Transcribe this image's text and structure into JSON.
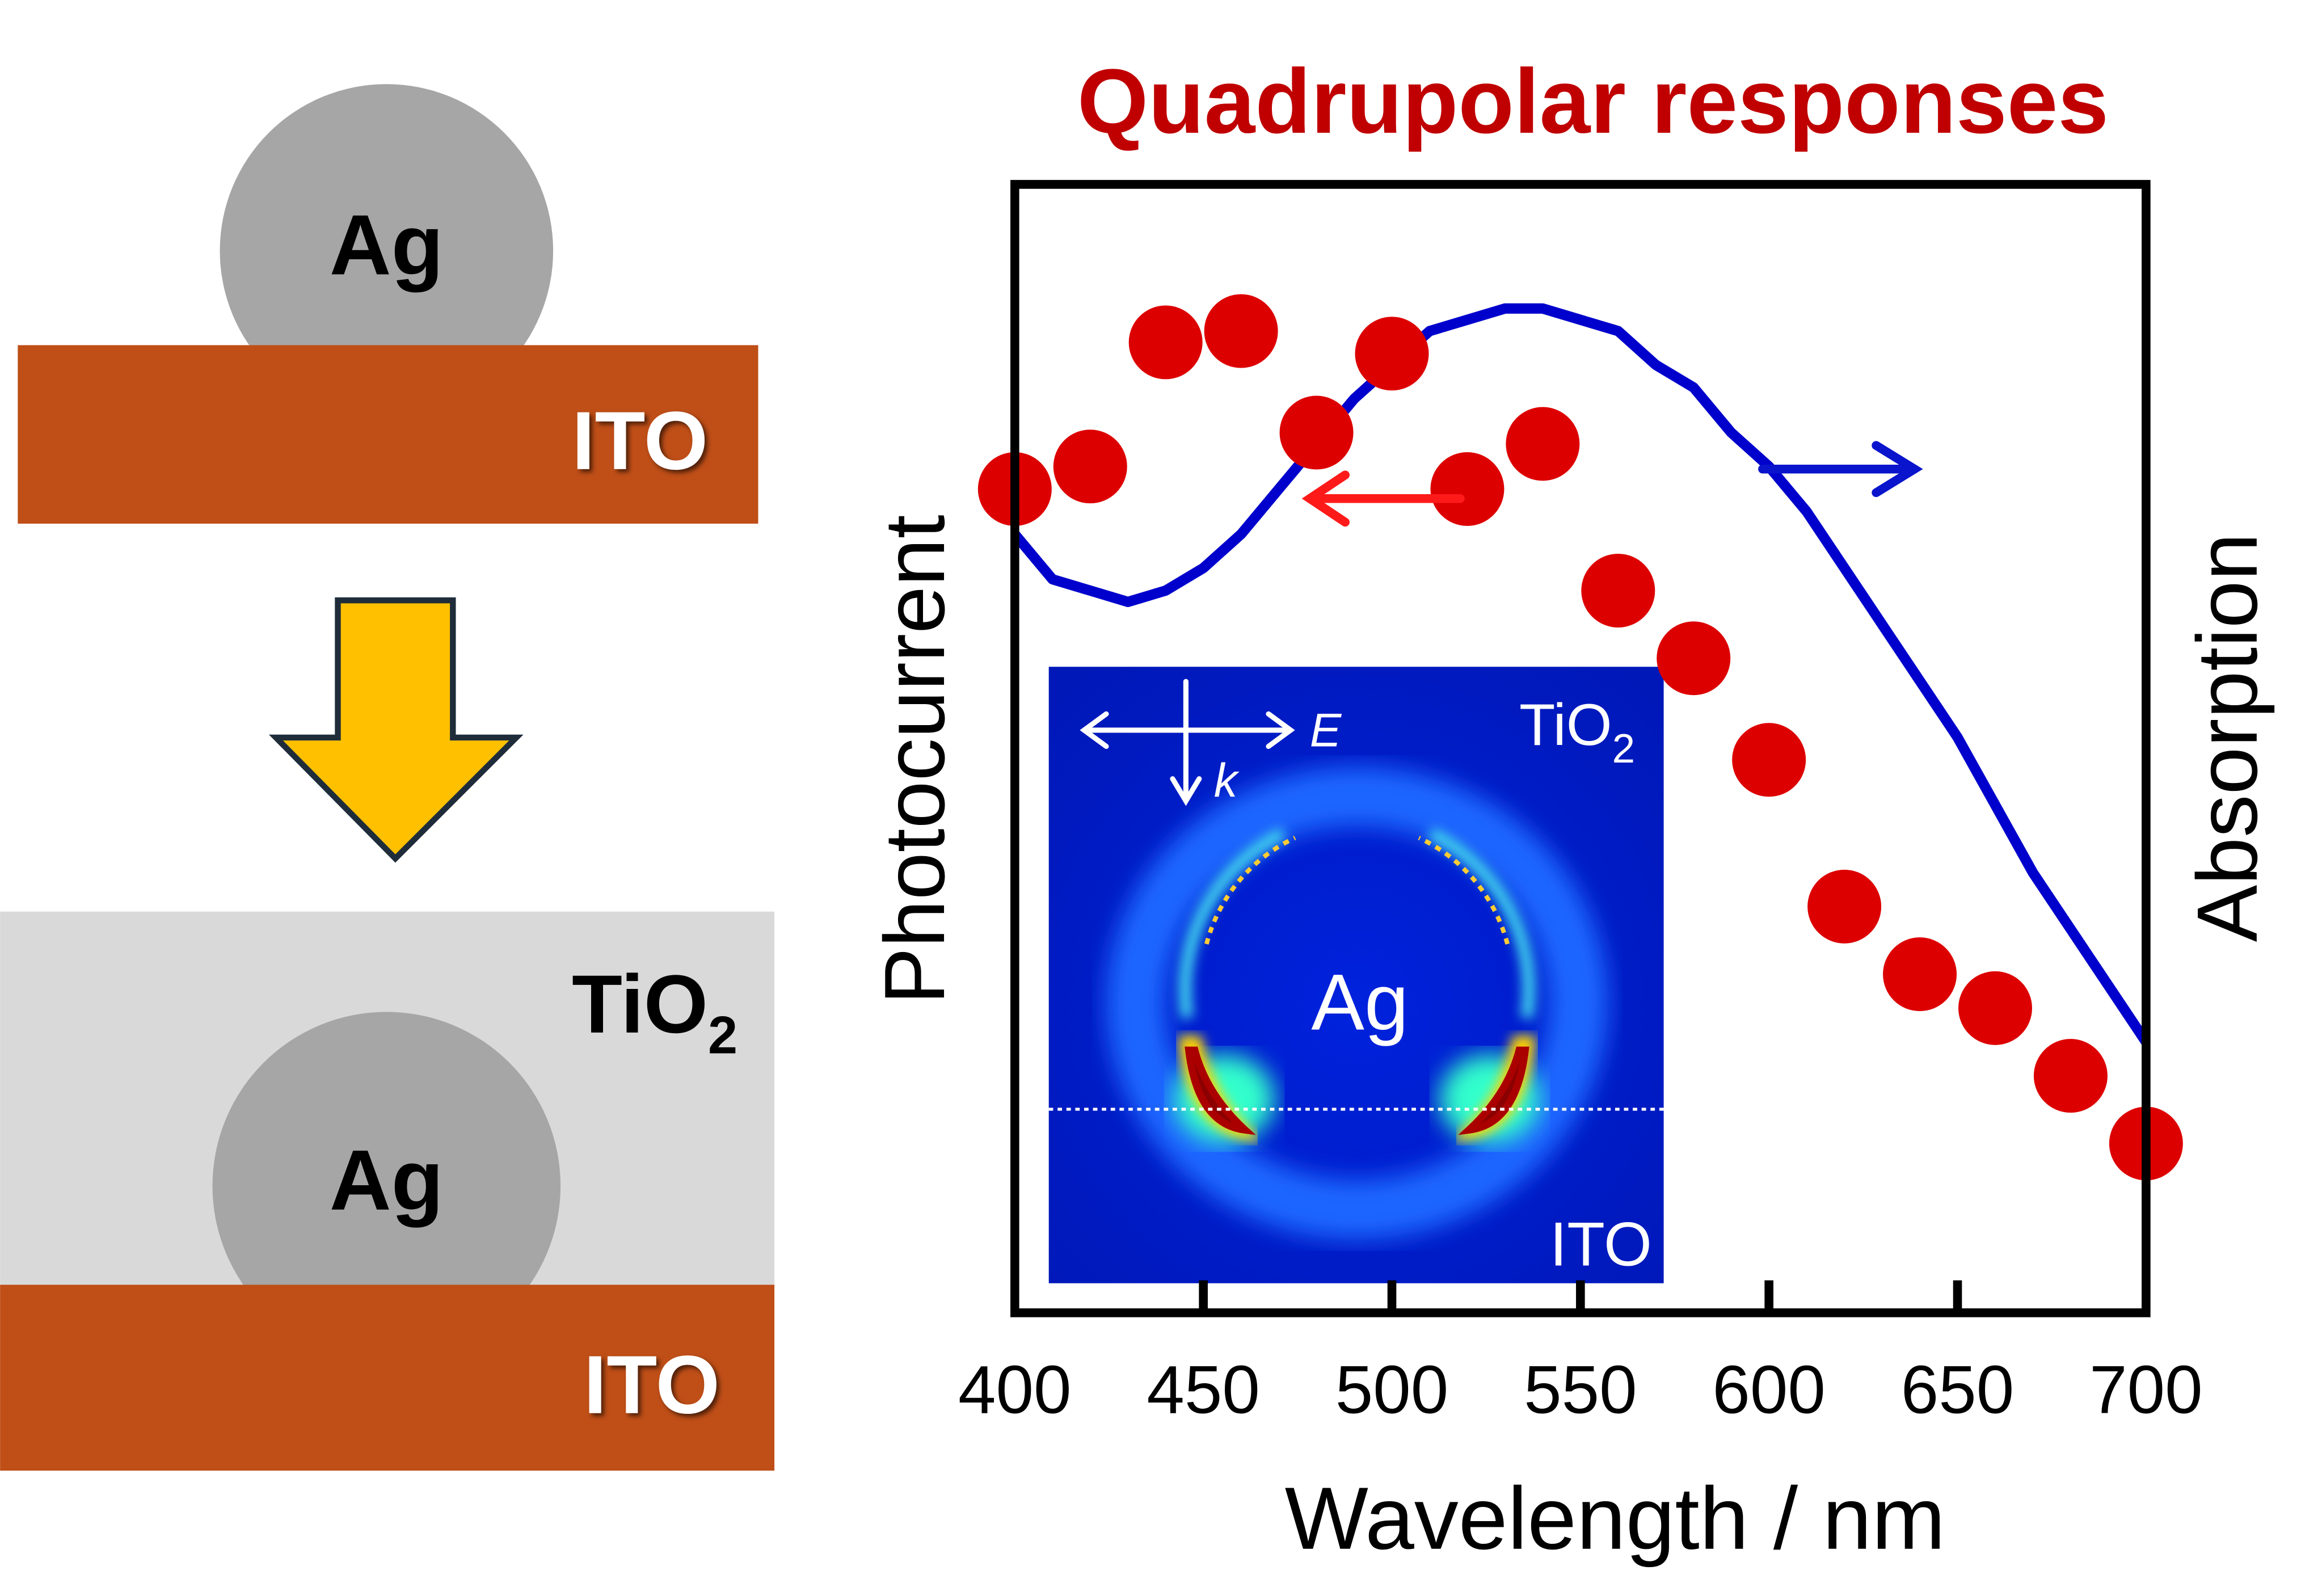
{
  "schematic": {
    "top": {
      "particle_label": "Ag",
      "substrate_label": "ITO"
    },
    "bottom": {
      "coating_label": "TiO",
      "coating_subscript": "2",
      "particle_label": "Ag",
      "substrate_label": "ITO"
    },
    "colors": {
      "ito": "#BF4E17",
      "silver": "#A6A6A6",
      "tio2": "#D9D9D9",
      "arrow": "#FFC000"
    }
  },
  "chart_data": {
    "type": "scatter",
    "title": "Quadrupolar responses",
    "xlabel": "Wavelength / nm",
    "ylabel": "Photocurrent",
    "y2label": "Absorption",
    "xlim": [
      400,
      700
    ],
    "xticks": [
      "400",
      "450",
      "500",
      "550",
      "600",
      "650",
      "700"
    ],
    "ylim": [
      0,
      1
    ],
    "grid": false,
    "series": [
      {
        "kind": "scatter",
        "axis": "left",
        "color": "#DD0000",
        "x": [
          400,
          420,
          440,
          460,
          480,
          500,
          520,
          540,
          560,
          580,
          600,
          620,
          640,
          660,
          680,
          700
        ],
        "y": [
          0.73,
          0.75,
          0.86,
          0.87,
          0.78,
          0.85,
          0.73,
          0.77,
          0.64,
          0.58,
          0.49,
          0.36,
          0.3,
          0.27,
          0.21,
          0.15
        ]
      },
      {
        "kind": "line",
        "axis": "right",
        "color": "#0000CC",
        "x": [
          400,
          410,
          420,
          430,
          440,
          450,
          460,
          470,
          480,
          490,
          500,
          510,
          520,
          530,
          540,
          550,
          560,
          570,
          580,
          590,
          600,
          610,
          620,
          630,
          640,
          650,
          660,
          670,
          680,
          690,
          700
        ],
        "y": [
          0.69,
          0.65,
          0.64,
          0.63,
          0.64,
          0.66,
          0.69,
          0.73,
          0.77,
          0.81,
          0.84,
          0.87,
          0.88,
          0.89,
          0.89,
          0.88,
          0.87,
          0.84,
          0.82,
          0.78,
          0.75,
          0.71,
          0.66,
          0.61,
          0.56,
          0.51,
          0.45,
          0.39,
          0.34,
          0.29,
          0.24
        ]
      }
    ],
    "inset": {
      "top_label": "TiO",
      "top_subscript": "2",
      "center_label": "Ag",
      "bottom_label": "ITO",
      "e_label": "E",
      "k_label": "k"
    }
  }
}
